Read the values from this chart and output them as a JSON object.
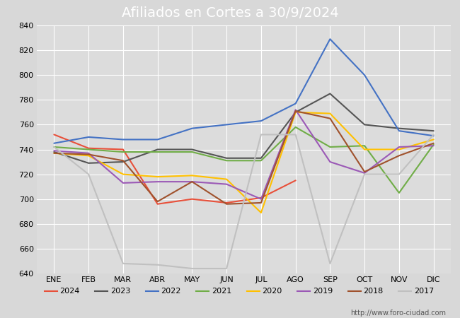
{
  "title": "Afiliados en Cortes a 30/9/2024",
  "ylim": [
    640,
    840
  ],
  "yticks": [
    640,
    660,
    680,
    700,
    720,
    740,
    760,
    780,
    800,
    820,
    840
  ],
  "months": [
    "ENE",
    "FEB",
    "MAR",
    "ABR",
    "MAY",
    "JUN",
    "JUL",
    "AGO",
    "SEP",
    "OCT",
    "NOV",
    "DIC"
  ],
  "series": {
    "2024": {
      "color": "#e8503a",
      "data": [
        752,
        741,
        740,
        696,
        700,
        697,
        701,
        715,
        null,
        null,
        null,
        null
      ]
    },
    "2023": {
      "color": "#555555",
      "data": [
        738,
        729,
        730,
        740,
        740,
        733,
        733,
        770,
        785,
        760,
        757,
        755
      ]
    },
    "2022": {
      "color": "#4472c4",
      "data": [
        745,
        750,
        748,
        748,
        757,
        760,
        763,
        777,
        829,
        800,
        755,
        751
      ]
    },
    "2021": {
      "color": "#70ad47",
      "data": [
        742,
        740,
        738,
        738,
        738,
        731,
        731,
        758,
        742,
        743,
        705,
        744
      ]
    },
    "2020": {
      "color": "#ffc000",
      "data": [
        737,
        735,
        720,
        718,
        719,
        716,
        689,
        770,
        769,
        740,
        740,
        748
      ]
    },
    "2019": {
      "color": "#9b59b6",
      "data": [
        739,
        737,
        713,
        714,
        714,
        712,
        700,
        772,
        730,
        721,
        742,
        743
      ]
    },
    "2018": {
      "color": "#a0522d",
      "data": [
        737,
        736,
        731,
        698,
        714,
        696,
        697,
        771,
        765,
        722,
        735,
        745
      ]
    },
    "2017": {
      "color": "#c0c0c0",
      "data": [
        742,
        720,
        648,
        647,
        644,
        644,
        752,
        752,
        648,
        720,
        720,
        752
      ]
    }
  },
  "legend_order": [
    "2024",
    "2023",
    "2022",
    "2021",
    "2020",
    "2019",
    "2018",
    "2017"
  ],
  "bg_color": "#d8d8d8",
  "plot_bg_color": "#dcdcdc",
  "grid_color": "#ffffff",
  "footer": "http://www.foro-ciudad.com",
  "title_bg_color": "#4472c4",
  "title_text_color": "#ffffff",
  "title_fontsize": 14,
  "tick_fontsize": 8,
  "legend_fontsize": 8
}
